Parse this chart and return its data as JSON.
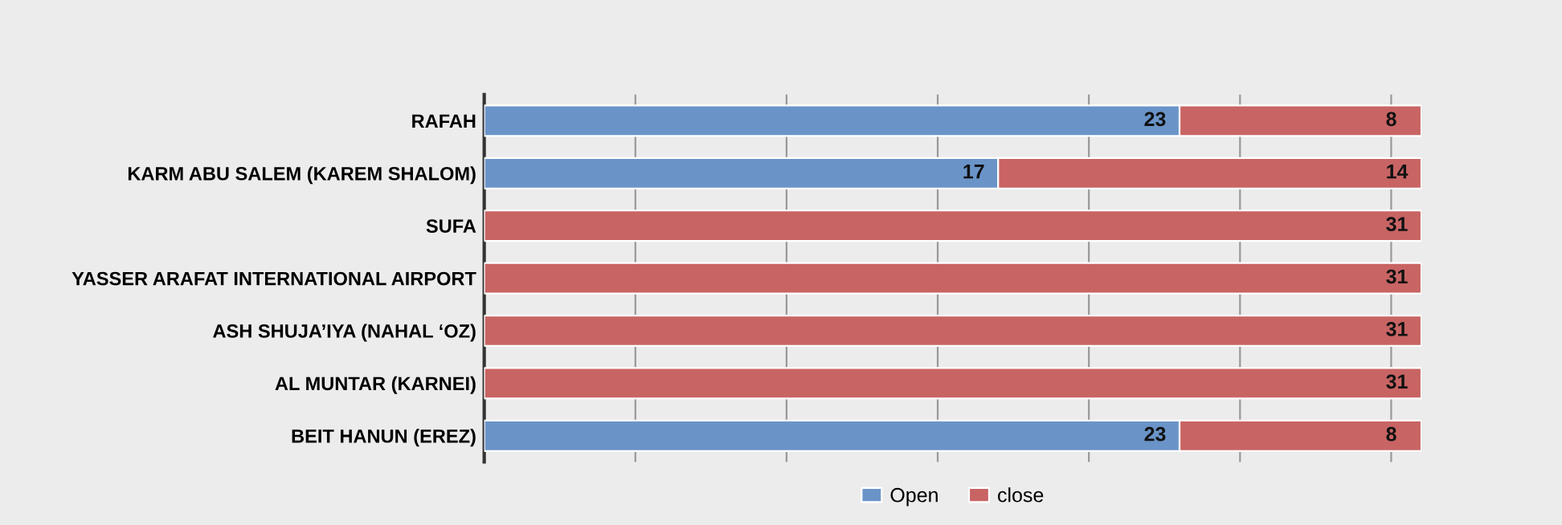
{
  "chart_data": {
    "type": "bar",
    "orientation": "horizontal",
    "stacked": true,
    "categories": [
      "RAFAH",
      "KARM ABU SALEM (KAREM SHALOM)",
      "SUFA",
      "YASSER ARAFAT INTERNATIONAL AIRPORT",
      "ASH SHUJA’IYA (NAHAL ‘OZ)",
      "AL MUNTAR (KARNEI)",
      "BEIT HANUN (EREZ)"
    ],
    "series": [
      {
        "name": "Open",
        "color": "#6a94c8",
        "values": [
          23,
          17,
          0,
          0,
          0,
          0,
          23
        ],
        "value_labels": [
          "23",
          "17",
          null,
          null,
          null,
          null,
          "23"
        ]
      },
      {
        "name": "close",
        "color": "#c86464",
        "values": [
          8,
          14,
          31,
          31,
          31,
          31,
          8
        ],
        "value_labels": [
          "8",
          "14",
          "31",
          "31",
          "31",
          "31",
          "8"
        ]
      }
    ],
    "xlim": [
      0,
      31
    ],
    "xticks": [
      {
        "value": 0,
        "label": null
      },
      {
        "value": 5,
        "label": null
      },
      {
        "value": 10,
        "label": null
      },
      {
        "value": 15,
        "label": null
      },
      {
        "value": 20,
        "label": null
      },
      {
        "value": 25,
        "label": null
      },
      {
        "value": 30,
        "label": null
      }
    ],
    "tick_labels": "y",
    "grid": "x",
    "legend": "bottom"
  }
}
